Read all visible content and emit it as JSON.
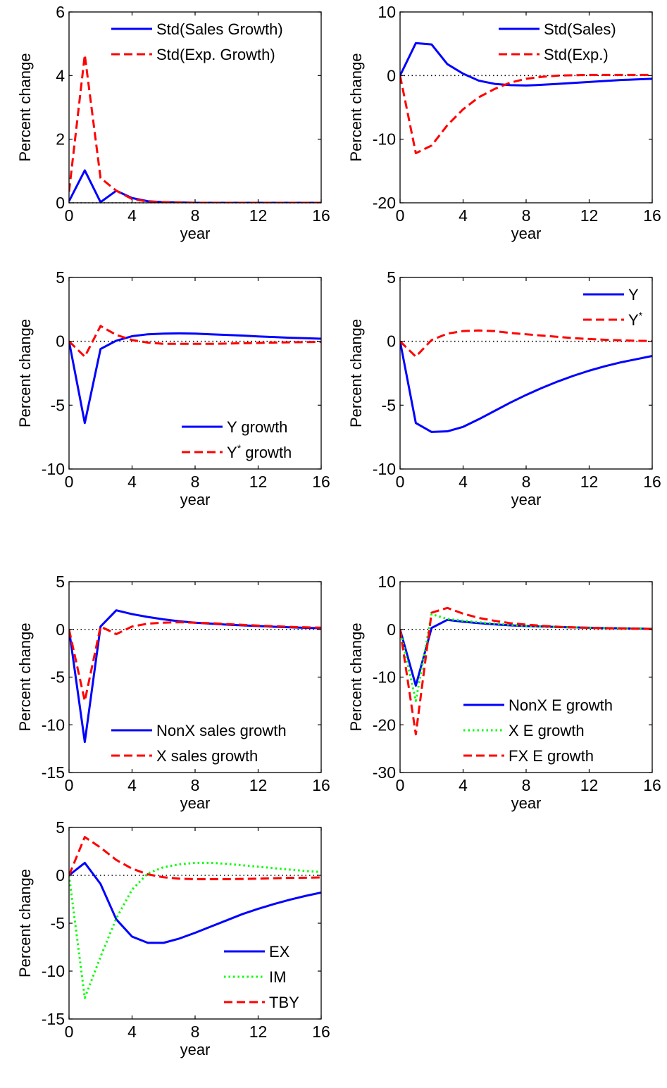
{
  "colors": {
    "blue": "#0000ff",
    "red": "#ff0000",
    "green": "#00ff00",
    "zero_line": "#000000"
  },
  "chart_data": [
    {
      "type": "line",
      "xlabel": "year",
      "ylabel": "Percent change",
      "xlim": [
        0,
        16
      ],
      "ylim": [
        0,
        6
      ],
      "xticks": [
        "0",
        "4",
        "8",
        "12",
        "16"
      ],
      "yticks": [
        "0",
        "2",
        "4",
        "6"
      ],
      "zero_line": true,
      "legend_position": "top-right",
      "series": [
        {
          "name": "Std(Sales Growth)",
          "style": "solid",
          "color": "#0000ff",
          "x": [
            0,
            1,
            2,
            3,
            4,
            5,
            6,
            7,
            8,
            9,
            10,
            11,
            12,
            13,
            14,
            15,
            16
          ],
          "y": [
            0.05,
            1.02,
            0.02,
            0.38,
            0.15,
            0.05,
            0.02,
            0.01,
            0,
            0,
            0,
            0,
            0,
            0,
            0,
            0,
            0
          ]
        },
        {
          "name": "Std(Exp. Growth)",
          "style": "dashed",
          "color": "#ff0000",
          "x": [
            0,
            1,
            2,
            3,
            4,
            5,
            6,
            7,
            8,
            9,
            10,
            11,
            12,
            13,
            14,
            15,
            16
          ],
          "y": [
            0.35,
            4.65,
            0.78,
            0.38,
            0.12,
            0.04,
            0.02,
            0.01,
            0,
            0,
            0,
            0,
            0,
            0,
            0,
            0,
            0
          ]
        }
      ]
    },
    {
      "type": "line",
      "xlabel": "year",
      "ylabel": "Percent change",
      "xlim": [
        0,
        16
      ],
      "ylim": [
        -20,
        10
      ],
      "xticks": [
        "0",
        "4",
        "8",
        "12",
        "16"
      ],
      "yticks": [
        "-20",
        "-10",
        "0",
        "10"
      ],
      "zero_line": true,
      "legend_position": "top-right",
      "series": [
        {
          "name": "Std(Sales)",
          "style": "solid",
          "color": "#0000ff",
          "x": [
            0,
            1,
            2,
            3,
            4,
            5,
            6,
            7,
            8,
            9,
            10,
            11,
            12,
            13,
            14,
            15,
            16
          ],
          "y": [
            0,
            5.1,
            4.9,
            1.8,
            0.3,
            -0.8,
            -1.3,
            -1.5,
            -1.55,
            -1.45,
            -1.3,
            -1.15,
            -1.0,
            -0.85,
            -0.7,
            -0.6,
            -0.5
          ]
        },
        {
          "name": "Std(Exp.)",
          "style": "dashed",
          "color": "#ff0000",
          "x": [
            0,
            1,
            2,
            3,
            4,
            5,
            6,
            7,
            8,
            9,
            10,
            11,
            12,
            13,
            14,
            15,
            16
          ],
          "y": [
            0,
            -12.2,
            -11.0,
            -7.8,
            -5.3,
            -3.4,
            -2.1,
            -1.1,
            -0.5,
            -0.2,
            0,
            0.05,
            0.1,
            0.1,
            0.1,
            0.1,
            0.1
          ]
        }
      ]
    },
    {
      "type": "line",
      "xlabel": "year",
      "ylabel": "Percent change",
      "xlim": [
        0,
        16
      ],
      "ylim": [
        -10,
        5
      ],
      "xticks": [
        "0",
        "4",
        "8",
        "12",
        "16"
      ],
      "yticks": [
        "-10",
        "-5",
        "0",
        "5"
      ],
      "zero_line": true,
      "legend_position": "bottom-right",
      "series": [
        {
          "name": "Y growth",
          "style": "solid",
          "color": "#0000ff",
          "x": [
            0,
            1,
            2,
            3,
            4,
            5,
            6,
            7,
            8,
            9,
            10,
            11,
            12,
            13,
            14,
            15,
            16
          ],
          "y": [
            0,
            -6.4,
            -0.6,
            0.05,
            0.4,
            0.55,
            0.6,
            0.62,
            0.6,
            0.55,
            0.5,
            0.45,
            0.38,
            0.33,
            0.28,
            0.24,
            0.2
          ]
        },
        {
          "name": "Y* growth",
          "style": "dashed",
          "color": "#ff0000",
          "x": [
            0,
            1,
            2,
            3,
            4,
            5,
            6,
            7,
            8,
            9,
            10,
            11,
            12,
            13,
            14,
            15,
            16
          ],
          "y": [
            0,
            -1.2,
            1.2,
            0.5,
            0.1,
            -0.1,
            -0.2,
            -0.2,
            -0.2,
            -0.2,
            -0.18,
            -0.15,
            -0.13,
            -0.1,
            -0.08,
            -0.06,
            -0.05
          ]
        }
      ]
    },
    {
      "type": "line",
      "xlabel": "year",
      "ylabel": "Percent change",
      "xlim": [
        0,
        16
      ],
      "ylim": [
        -10,
        5
      ],
      "xticks": [
        "0",
        "4",
        "8",
        "12",
        "16"
      ],
      "yticks": [
        "-10",
        "-5",
        "0",
        "5"
      ],
      "zero_line": true,
      "legend_position": "top-right",
      "series": [
        {
          "name": "Y",
          "style": "solid",
          "color": "#0000ff",
          "x": [
            0,
            1,
            2,
            3,
            4,
            5,
            6,
            7,
            8,
            9,
            10,
            11,
            12,
            13,
            14,
            15,
            16
          ],
          "y": [
            0,
            -6.4,
            -7.1,
            -7.05,
            -6.7,
            -6.1,
            -5.45,
            -4.8,
            -4.2,
            -3.65,
            -3.15,
            -2.7,
            -2.3,
            -1.95,
            -1.65,
            -1.4,
            -1.15
          ]
        },
        {
          "name": "Y*",
          "style": "dashed",
          "color": "#ff0000",
          "x": [
            0,
            1,
            2,
            3,
            4,
            5,
            6,
            7,
            8,
            9,
            10,
            11,
            12,
            13,
            14,
            15,
            16
          ],
          "y": [
            0,
            -1.2,
            0.1,
            0.6,
            0.8,
            0.85,
            0.8,
            0.65,
            0.55,
            0.45,
            0.35,
            0.25,
            0.18,
            0.12,
            0.08,
            0.04,
            0.02
          ]
        }
      ]
    },
    {
      "type": "line",
      "xlabel": "year",
      "ylabel": "Percent change",
      "xlim": [
        0,
        16
      ],
      "ylim": [
        -15,
        5
      ],
      "xticks": [
        "0",
        "4",
        "8",
        "12",
        "16"
      ],
      "yticks": [
        "-15",
        "-10",
        "-5",
        "0",
        "5"
      ],
      "zero_line": true,
      "legend_position": "bottom-right",
      "series": [
        {
          "name": "NonX sales growth",
          "style": "solid",
          "color": "#0000ff",
          "x": [
            0,
            1,
            2,
            3,
            4,
            5,
            6,
            7,
            8,
            9,
            10,
            11,
            12,
            13,
            14,
            15,
            16
          ],
          "y": [
            0,
            -11.8,
            0.3,
            2.0,
            1.6,
            1.3,
            1.05,
            0.85,
            0.7,
            0.6,
            0.5,
            0.42,
            0.35,
            0.28,
            0.22,
            0.17,
            0.12
          ]
        },
        {
          "name": "X sales growth",
          "style": "dashed",
          "color": "#ff0000",
          "x": [
            0,
            1,
            2,
            3,
            4,
            5,
            6,
            7,
            8,
            9,
            10,
            11,
            12,
            13,
            14,
            15,
            16
          ],
          "y": [
            0,
            -7.5,
            0.3,
            -0.5,
            0.3,
            0.6,
            0.7,
            0.75,
            0.7,
            0.65,
            0.55,
            0.48,
            0.4,
            0.33,
            0.27,
            0.22,
            0.18
          ]
        }
      ]
    },
    {
      "type": "line",
      "xlabel": "year",
      "ylabel": "Percent change",
      "xlim": [
        0,
        16
      ],
      "ylim": [
        -30,
        10
      ],
      "xticks": [
        "0",
        "4",
        "8",
        "12",
        "16"
      ],
      "yticks": [
        "-30",
        "-20",
        "-10",
        "0",
        "10"
      ],
      "zero_line": true,
      "legend_position": "bottom-right",
      "series": [
        {
          "name": "NonX E growth",
          "style": "solid",
          "color": "#0000ff",
          "x": [
            0,
            1,
            2,
            3,
            4,
            5,
            6,
            7,
            8,
            9,
            10,
            11,
            12,
            13,
            14,
            15,
            16
          ],
          "y": [
            0,
            -11.8,
            0.3,
            2.0,
            1.6,
            1.3,
            1.05,
            0.85,
            0.7,
            0.6,
            0.5,
            0.42,
            0.35,
            0.28,
            0.22,
            0.17,
            0.12
          ]
        },
        {
          "name": "X E growth",
          "style": "dotted",
          "color": "#00ff00",
          "x": [
            0,
            1,
            2,
            3,
            4,
            5,
            6,
            7,
            8,
            9,
            10,
            11,
            12,
            13,
            14,
            15,
            16
          ],
          "y": [
            0,
            -15,
            3.2,
            2.2,
            1.8,
            1.5,
            1.2,
            0.95,
            0.75,
            0.6,
            0.5,
            0.42,
            0.35,
            0.28,
            0.22,
            0.17,
            0.12
          ]
        },
        {
          "name": "FX E growth",
          "style": "dashed",
          "color": "#ff0000",
          "x": [
            0,
            1,
            2,
            3,
            4,
            5,
            6,
            7,
            8,
            9,
            10,
            11,
            12,
            13,
            14,
            15,
            16
          ],
          "y": [
            0,
            -22,
            3.5,
            4.5,
            3.3,
            2.4,
            1.8,
            1.3,
            1.0,
            0.75,
            0.55,
            0.42,
            0.32,
            0.25,
            0.18,
            0.13,
            0.1
          ]
        }
      ]
    },
    {
      "type": "line",
      "xlabel": "year",
      "ylabel": "Percent change",
      "xlim": [
        0,
        16
      ],
      "ylim": [
        -15,
        5
      ],
      "xticks": [
        "0",
        "4",
        "8",
        "12",
        "16"
      ],
      "yticks": [
        "-15",
        "-10",
        "-5",
        "0",
        "5"
      ],
      "zero_line": true,
      "legend_position": "bottom-right",
      "series": [
        {
          "name": "EX",
          "style": "solid",
          "color": "#0000ff",
          "x": [
            0,
            1,
            2,
            3,
            4,
            5,
            6,
            7,
            8,
            9,
            10,
            11,
            12,
            13,
            14,
            15,
            16
          ],
          "y": [
            0,
            1.3,
            -0.9,
            -4.6,
            -6.4,
            -7.05,
            -7.05,
            -6.6,
            -6.0,
            -5.35,
            -4.7,
            -4.05,
            -3.5,
            -3.0,
            -2.55,
            -2.15,
            -1.8
          ]
        },
        {
          "name": "IM",
          "style": "dotted",
          "color": "#00ff00",
          "x": [
            0,
            1,
            2,
            3,
            4,
            5,
            6,
            7,
            8,
            9,
            10,
            11,
            12,
            13,
            14,
            15,
            16
          ],
          "y": [
            0,
            -12.8,
            -8.5,
            -4.5,
            -1.5,
            0.2,
            0.85,
            1.15,
            1.3,
            1.3,
            1.2,
            1.05,
            0.9,
            0.75,
            0.6,
            0.45,
            0.35
          ]
        },
        {
          "name": "TBY",
          "style": "dashed",
          "color": "#ff0000",
          "x": [
            0,
            1,
            2,
            3,
            4,
            5,
            6,
            7,
            8,
            9,
            10,
            11,
            12,
            13,
            14,
            15,
            16
          ],
          "y": [
            0,
            4.0,
            2.9,
            1.6,
            0.7,
            0.1,
            -0.2,
            -0.35,
            -0.4,
            -0.4,
            -0.4,
            -0.38,
            -0.35,
            -0.3,
            -0.27,
            -0.25,
            -0.22
          ]
        }
      ]
    }
  ]
}
